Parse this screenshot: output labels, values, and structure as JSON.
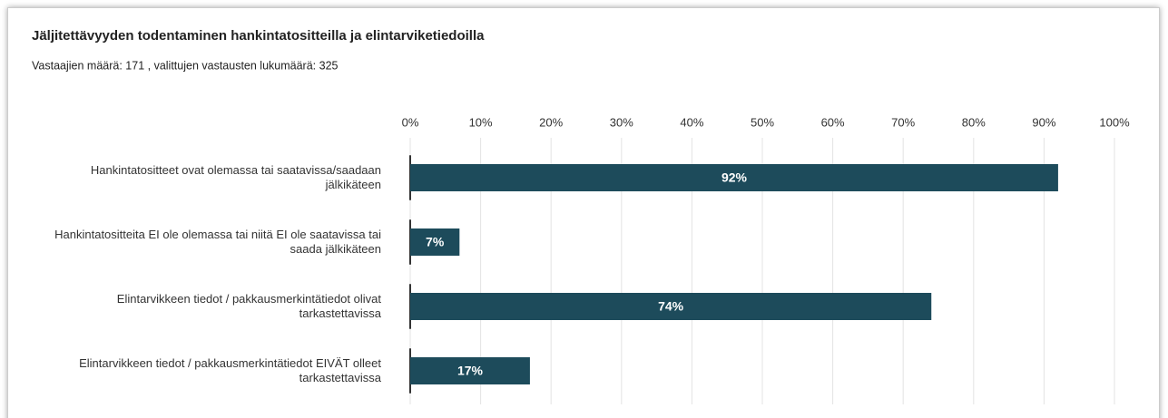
{
  "chart_data": {
    "type": "bar",
    "orientation": "horizontal",
    "title": "Jäljitettävyyden todentaminen hankintatositteilla ja elintarviketiedoilla",
    "subtitle": "Vastaajien määrä: 171 , valittujen vastausten lukumäärä: 325",
    "categories": [
      "Hankintatositteet ovat olemassa tai saatavissa/saadaan jälkikäteen",
      "Hankintatositteita EI ole olemassa tai niitä EI ole saatavissa tai saada jälkikäteen",
      "Elintarvikkeen tiedot / pakkausmerkintätiedot olivat tarkastettavissa",
      "Elintarvikkeen tiedot / pakkausmerkintätiedot EIVÄT olleet tarkastettavissa"
    ],
    "values": [
      92,
      7,
      74,
      17
    ],
    "value_labels": [
      "92%",
      "7%",
      "74%",
      "17%"
    ],
    "color": "#1d4b5b",
    "xlim": [
      0,
      100
    ],
    "xticks": [
      {
        "value": 0,
        "label": "0%"
      },
      {
        "value": 10,
        "label": "10%"
      },
      {
        "value": 20,
        "label": "20%"
      },
      {
        "value": 30,
        "label": "30%"
      },
      {
        "value": 40,
        "label": "40%"
      },
      {
        "value": 50,
        "label": "50%"
      },
      {
        "value": 60,
        "label": "60%"
      },
      {
        "value": 70,
        "label": "70%"
      },
      {
        "value": 80,
        "label": "80%"
      },
      {
        "value": 90,
        "label": "90%"
      },
      {
        "value": 100,
        "label": "100%"
      }
    ],
    "grid": true
  }
}
